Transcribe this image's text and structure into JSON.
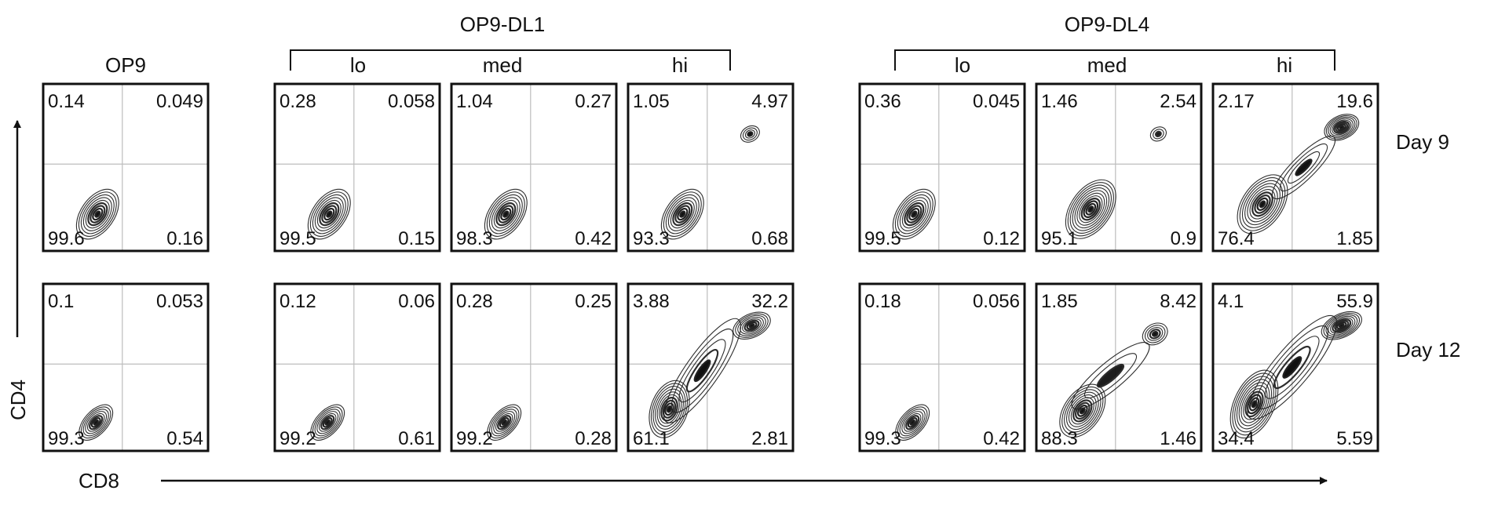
{
  "axes": {
    "x_label": "CD8",
    "y_label": "CD4"
  },
  "groups": [
    {
      "id": "op9",
      "label": "OP9",
      "levels": []
    },
    {
      "id": "dl1",
      "label": "OP9-DL1",
      "levels": [
        "lo",
        "med",
        "hi"
      ]
    },
    {
      "id": "dl4",
      "label": "OP9-DL4",
      "levels": [
        "lo",
        "med",
        "hi"
      ]
    }
  ],
  "rows": [
    "Day 9",
    "Day 12"
  ],
  "chart_data": {
    "type": "contour",
    "xlabel": "CD8",
    "ylabel": "CD4",
    "quadrant_order": [
      "upper-left",
      "upper-right",
      "lower-left",
      "lower-right"
    ],
    "panels": [
      {
        "group": "OP9",
        "level": "",
        "day": "Day 9",
        "quadrants": [
          "0.14",
          "0.049",
          "99.6",
          "0.16"
        ]
      },
      {
        "group": "OP9-DL1",
        "level": "lo",
        "day": "Day 9",
        "quadrants": [
          "0.28",
          "0.058",
          "99.5",
          "0.15"
        ]
      },
      {
        "group": "OP9-DL1",
        "level": "med",
        "day": "Day 9",
        "quadrants": [
          "1.04",
          "0.27",
          "98.3",
          "0.42"
        ]
      },
      {
        "group": "OP9-DL1",
        "level": "hi",
        "day": "Day 9",
        "quadrants": [
          "1.05",
          "4.97",
          "93.3",
          "0.68"
        ]
      },
      {
        "group": "OP9-DL4",
        "level": "lo",
        "day": "Day 9",
        "quadrants": [
          "0.36",
          "0.045",
          "99.5",
          "0.12"
        ]
      },
      {
        "group": "OP9-DL4",
        "level": "med",
        "day": "Day 9",
        "quadrants": [
          "1.46",
          "2.54",
          "95.1",
          "0.9"
        ]
      },
      {
        "group": "OP9-DL4",
        "level": "hi",
        "day": "Day 9",
        "quadrants": [
          "2.17",
          "19.6",
          "76.4",
          "1.85"
        ]
      },
      {
        "group": "OP9",
        "level": "",
        "day": "Day 12",
        "quadrants": [
          "0.1",
          "0.053",
          "99.3",
          "0.54"
        ]
      },
      {
        "group": "OP9-DL1",
        "level": "lo",
        "day": "Day 12",
        "quadrants": [
          "0.12",
          "0.06",
          "99.2",
          "0.61"
        ]
      },
      {
        "group": "OP9-DL1",
        "level": "med",
        "day": "Day 12",
        "quadrants": [
          "0.28",
          "0.25",
          "99.2",
          "0.28"
        ]
      },
      {
        "group": "OP9-DL1",
        "level": "hi",
        "day": "Day 12",
        "quadrants": [
          "3.88",
          "32.2",
          "61.1",
          "2.81"
        ]
      },
      {
        "group": "OP9-DL4",
        "level": "lo",
        "day": "Day 12",
        "quadrants": [
          "0.18",
          "0.056",
          "99.3",
          "0.42"
        ]
      },
      {
        "group": "OP9-DL4",
        "level": "med",
        "day": "Day 12",
        "quadrants": [
          "1.85",
          "8.42",
          "88.3",
          "1.46"
        ]
      },
      {
        "group": "OP9-DL4",
        "level": "hi",
        "day": "Day 12",
        "quadrants": [
          "4.1",
          "55.9",
          "34.4",
          "5.59"
        ]
      }
    ]
  }
}
